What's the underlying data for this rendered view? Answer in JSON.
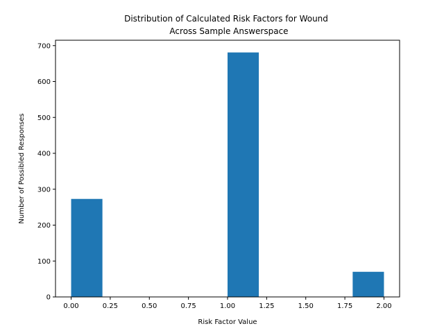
{
  "chart_data": {
    "type": "bar",
    "title_lines": [
      "Distribution of Calculated Risk Factors for Wound",
      "Across Sample Answerspace"
    ],
    "xlabel": "Risk Factor Value",
    "ylabel": "Number of Possibled Responses",
    "bin_width": 0.2,
    "bins": [
      {
        "x_start": 0.0,
        "value": 273
      },
      {
        "x_start": 0.2,
        "value": 0
      },
      {
        "x_start": 0.4,
        "value": 0
      },
      {
        "x_start": 0.6,
        "value": 0
      },
      {
        "x_start": 0.8,
        "value": 0
      },
      {
        "x_start": 1.0,
        "value": 681
      },
      {
        "x_start": 1.2,
        "value": 0
      },
      {
        "x_start": 1.4,
        "value": 0
      },
      {
        "x_start": 1.6,
        "value": 0
      },
      {
        "x_start": 1.8,
        "value": 70
      }
    ],
    "xlim": [
      -0.1,
      2.1
    ],
    "ylim": [
      0,
      715
    ],
    "xticks": [
      0.0,
      0.25,
      0.5,
      0.75,
      1.0,
      1.25,
      1.5,
      1.75,
      2.0
    ],
    "xtick_labels": [
      "0.00",
      "0.25",
      "0.50",
      "0.75",
      "1.00",
      "1.25",
      "1.50",
      "1.75",
      "2.00"
    ],
    "yticks": [
      0,
      100,
      200,
      300,
      400,
      500,
      600,
      700
    ],
    "ytick_labels": [
      "0",
      "100",
      "200",
      "300",
      "400",
      "500",
      "600",
      "700"
    ],
    "bar_color": "#1f77b4",
    "grid": false,
    "legend": "none"
  }
}
